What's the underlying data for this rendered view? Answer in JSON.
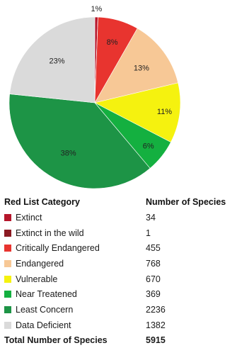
{
  "chart_data": {
    "type": "pie",
    "title": "",
    "start": "top",
    "direction": "clockwise",
    "slices": [
      {
        "label": "Extinct",
        "value": 34,
        "percent_label": "1%",
        "color": "#b5162b"
      },
      {
        "label": "Extinct in the wild",
        "value": 1,
        "percent_label": "",
        "color": "#8b1a22"
      },
      {
        "label": "Critically Endangered",
        "value": 455,
        "percent_label": "8%",
        "color": "#e8342f"
      },
      {
        "label": "Endangered",
        "value": 768,
        "percent_label": "13%",
        "color": "#f7c896"
      },
      {
        "label": "Vulnerable",
        "value": 670,
        "percent_label": "11%",
        "color": "#f5f20f"
      },
      {
        "label": "Near Treatened",
        "value": 369,
        "percent_label": "6%",
        "color": "#14b040"
      },
      {
        "label": "Least Concern",
        "value": 2236,
        "percent_label": "38%",
        "color": "#1d9446"
      },
      {
        "label": "Data Deficient",
        "value": 1382,
        "percent_label": "23%",
        "color": "#dadada"
      }
    ]
  },
  "table": {
    "header": {
      "category": "Red List Category",
      "count": "Number of Species"
    },
    "total": {
      "label": "Total Number of Species",
      "value": "5915"
    }
  }
}
